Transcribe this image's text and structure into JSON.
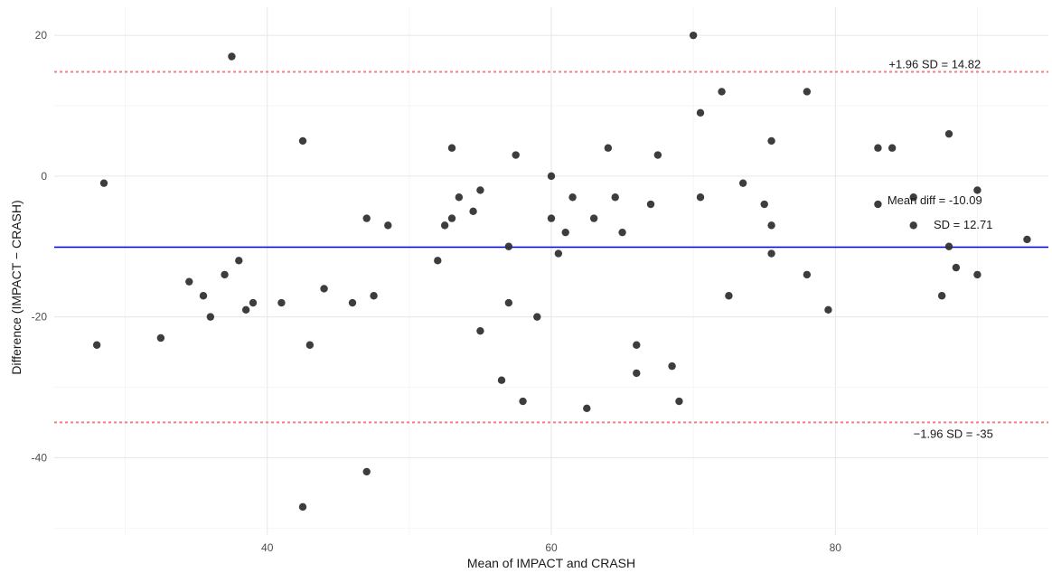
{
  "chart_data": {
    "type": "scatter",
    "title": "",
    "xlabel": "Mean of IMPACT and CRASH",
    "ylabel": "Difference (IMPACT − CRASH)",
    "xlim": [
      25,
      95
    ],
    "ylim": [
      -51,
      24
    ],
    "x_ticks": [
      40,
      60,
      80
    ],
    "x_tick_labels": [
      "40",
      "60",
      "80"
    ],
    "y_ticks": [
      -40,
      -20,
      0,
      20
    ],
    "y_tick_labels": [
      "-40",
      "-20",
      "0",
      "20"
    ],
    "grid": true,
    "point_color": "#333333",
    "mean_line": {
      "value": -10.09,
      "color": "#0000ff"
    },
    "upper_limit": {
      "value": 14.82,
      "color": "#f08080"
    },
    "lower_limit": {
      "value": -35,
      "color": "#f08080"
    },
    "annotations": {
      "upper": "+1.96 SD = 14.82",
      "mean": "Mean diff = -10.09",
      "sd": "SD = 12.71",
      "lower": "−1.96 SD = -35"
    },
    "points": [
      {
        "x": 28.0,
        "y": -24
      },
      {
        "x": 28.5,
        "y": -1
      },
      {
        "x": 32.5,
        "y": -23
      },
      {
        "x": 34.5,
        "y": -15
      },
      {
        "x": 35.5,
        "y": -17
      },
      {
        "x": 36.0,
        "y": -20
      },
      {
        "x": 37.0,
        "y": -14
      },
      {
        "x": 37.5,
        "y": 17
      },
      {
        "x": 38.0,
        "y": -12
      },
      {
        "x": 38.5,
        "y": -19
      },
      {
        "x": 39.0,
        "y": -18
      },
      {
        "x": 41.0,
        "y": -18
      },
      {
        "x": 42.5,
        "y": 5
      },
      {
        "x": 42.5,
        "y": -47
      },
      {
        "x": 43.0,
        "y": -24
      },
      {
        "x": 44.0,
        "y": -16
      },
      {
        "x": 46.0,
        "y": -18
      },
      {
        "x": 47.0,
        "y": -6
      },
      {
        "x": 47.0,
        "y": -42
      },
      {
        "x": 47.5,
        "y": -17
      },
      {
        "x": 48.5,
        "y": -7
      },
      {
        "x": 52.0,
        "y": -12
      },
      {
        "x": 52.5,
        "y": -7
      },
      {
        "x": 53.0,
        "y": -6
      },
      {
        "x": 53.0,
        "y": 4
      },
      {
        "x": 53.5,
        "y": -3
      },
      {
        "x": 54.5,
        "y": -5
      },
      {
        "x": 55.0,
        "y": -2
      },
      {
        "x": 55.0,
        "y": -22
      },
      {
        "x": 56.5,
        "y": -29
      },
      {
        "x": 57.0,
        "y": -10
      },
      {
        "x": 57.0,
        "y": -18
      },
      {
        "x": 57.5,
        "y": 3
      },
      {
        "x": 58.0,
        "y": -32
      },
      {
        "x": 59.0,
        "y": -20
      },
      {
        "x": 60.0,
        "y": 0
      },
      {
        "x": 60.0,
        "y": -6
      },
      {
        "x": 60.5,
        "y": -11
      },
      {
        "x": 61.0,
        "y": -8
      },
      {
        "x": 61.5,
        "y": -3
      },
      {
        "x": 62.5,
        "y": -33
      },
      {
        "x": 63.0,
        "y": -6
      },
      {
        "x": 64.0,
        "y": 4
      },
      {
        "x": 64.5,
        "y": -3
      },
      {
        "x": 65.0,
        "y": -8
      },
      {
        "x": 66.0,
        "y": -24
      },
      {
        "x": 66.0,
        "y": -28
      },
      {
        "x": 67.0,
        "y": -4
      },
      {
        "x": 67.5,
        "y": 3
      },
      {
        "x": 68.5,
        "y": -27
      },
      {
        "x": 69.0,
        "y": -32
      },
      {
        "x": 70.0,
        "y": 20
      },
      {
        "x": 70.5,
        "y": 9
      },
      {
        "x": 70.5,
        "y": -3
      },
      {
        "x": 72.0,
        "y": 12
      },
      {
        "x": 72.5,
        "y": -17
      },
      {
        "x": 73.5,
        "y": -1
      },
      {
        "x": 75.0,
        "y": -4
      },
      {
        "x": 75.5,
        "y": 5
      },
      {
        "x": 75.5,
        "y": -7
      },
      {
        "x": 75.5,
        "y": -11
      },
      {
        "x": 78.0,
        "y": 12
      },
      {
        "x": 78.0,
        "y": -14
      },
      {
        "x": 79.5,
        "y": -19
      },
      {
        "x": 83.0,
        "y": 4
      },
      {
        "x": 83.0,
        "y": -4
      },
      {
        "x": 84.0,
        "y": 4
      },
      {
        "x": 85.5,
        "y": -3
      },
      {
        "x": 85.5,
        "y": -7
      },
      {
        "x": 87.5,
        "y": -17
      },
      {
        "x": 88.0,
        "y": 6
      },
      {
        "x": 88.0,
        "y": -10
      },
      {
        "x": 88.5,
        "y": -13
      },
      {
        "x": 90.0,
        "y": -2
      },
      {
        "x": 90.0,
        "y": -14
      },
      {
        "x": 93.5,
        "y": -9
      }
    ]
  }
}
